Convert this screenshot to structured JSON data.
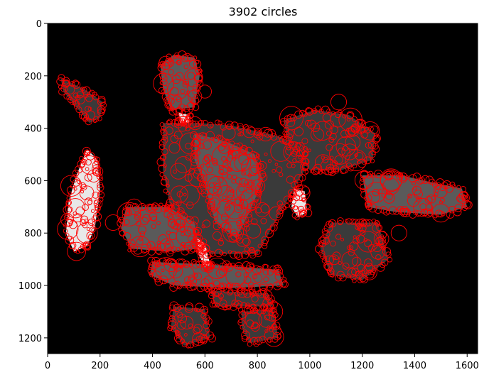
{
  "chart_data": {
    "type": "scatter",
    "title": "3902 circles",
    "xlabel": "",
    "ylabel": "",
    "xlim": [
      0,
      1640
    ],
    "ylim": [
      1260,
      0
    ],
    "y_inverted": true,
    "x_ticks": [
      0,
      200,
      400,
      600,
      800,
      1000,
      1200,
      1400,
      1600
    ],
    "y_ticks": [
      0,
      200,
      400,
      600,
      800,
      1000,
      1200
    ],
    "grid": false,
    "background_color": "#000000",
    "circle_color": "#ff0000",
    "image_underlay": {
      "description": "grayscale segmented object regions",
      "colors": [
        "#3a3a3a",
        "#5a5a5a",
        "#e8e8e8"
      ]
    },
    "circle_count": 3902
  }
}
